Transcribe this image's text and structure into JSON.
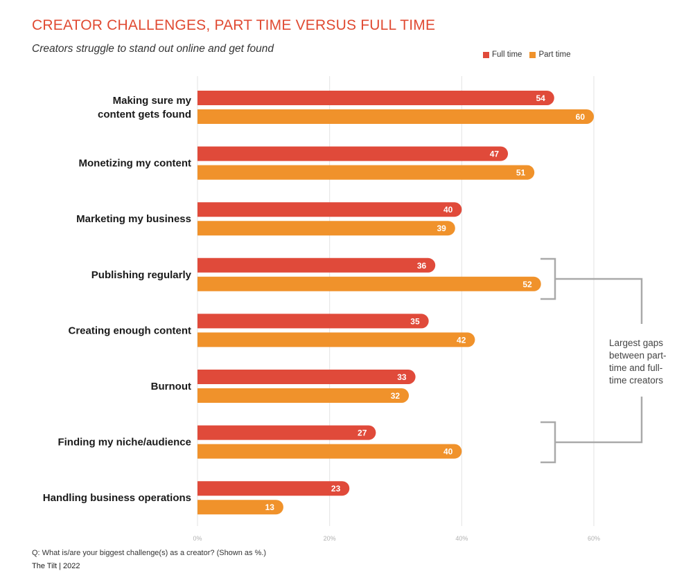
{
  "title": "CREATOR CHALLENGES, PART TIME VERSUS FULL TIME",
  "subtitle": "Creators struggle to stand out online and get found",
  "footnote": "Q: What is/are your biggest challenge(s) as a creator? (Shown as %.)",
  "source": "The Tilt  |  2022",
  "annotation": "Largest gaps between part-time and full-time creators",
  "colors": {
    "full_time": "#e04a3a",
    "part_time": "#f0922b",
    "grid": "#e3e3e3",
    "bracket": "#a9a9a9"
  },
  "chart_data": {
    "type": "bar",
    "orientation": "horizontal",
    "categories": [
      "Making sure my content gets found",
      "Monetizing my content",
      "Marketing my business",
      "Publishing regularly",
      "Creating enough content",
      "Burnout",
      "Finding my niche/audience",
      "Handling business operations"
    ],
    "series": [
      {
        "name": "Full time",
        "values": [
          54,
          47,
          40,
          36,
          35,
          33,
          27,
          23
        ]
      },
      {
        "name": "Part time",
        "values": [
          60,
          51,
          39,
          52,
          42,
          32,
          40,
          13
        ]
      }
    ],
    "xlim": [
      0,
      60
    ],
    "xticks": [
      "0%",
      "20%",
      "40%",
      "60%"
    ],
    "grid": true,
    "legend_position": "top-right",
    "category_lines": [
      [
        "Making sure my",
        "content gets found"
      ],
      [
        "Monetizing my content"
      ],
      [
        "Marketing my business"
      ],
      [
        "Publishing regularly"
      ],
      [
        "Creating enough content"
      ],
      [
        "Burnout"
      ],
      [
        "Finding my niche/audience"
      ],
      [
        "Handling business operations"
      ]
    ]
  }
}
